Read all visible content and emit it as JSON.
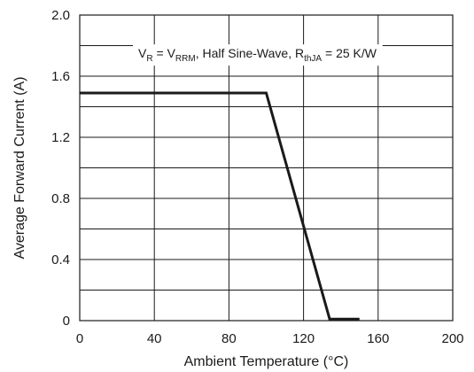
{
  "chart_data": {
    "type": "line",
    "title": "",
    "xlabel": "Ambient Temperature (°C)",
    "ylabel": "Average Forward Current (A)",
    "xlim": [
      0,
      200
    ],
    "ylim": [
      0,
      2.0
    ],
    "x_ticks": [
      0,
      40,
      80,
      120,
      160,
      200
    ],
    "x_tick_labels": [
      "0",
      "40",
      "80",
      "120",
      "160",
      "200"
    ],
    "y_ticks": [
      0,
      0.4,
      0.8,
      1.2,
      1.6,
      2.0
    ],
    "y_tick_labels": [
      "0",
      "0.4",
      "0.8",
      "1.2",
      "1.6",
      "2.0"
    ],
    "grid": true,
    "grid_x_step": 40,
    "grid_y_step": 0.2,
    "series": [
      {
        "x": [
          0,
          100,
          134,
          150
        ],
        "y": [
          1.49,
          1.49,
          0.01,
          0.01
        ]
      }
    ],
    "annotation": {
      "parts": [
        {
          "text": "V",
          "sub": false
        },
        {
          "text": "R",
          "sub": true
        },
        {
          "text": " = V",
          "sub": false
        },
        {
          "text": "RRM",
          "sub": true
        },
        {
          "text": ", Half Sine-Wave, R",
          "sub": false
        },
        {
          "text": "thJA",
          "sub": true
        },
        {
          "text": " = 25 K/W",
          "sub": false
        }
      ]
    }
  }
}
